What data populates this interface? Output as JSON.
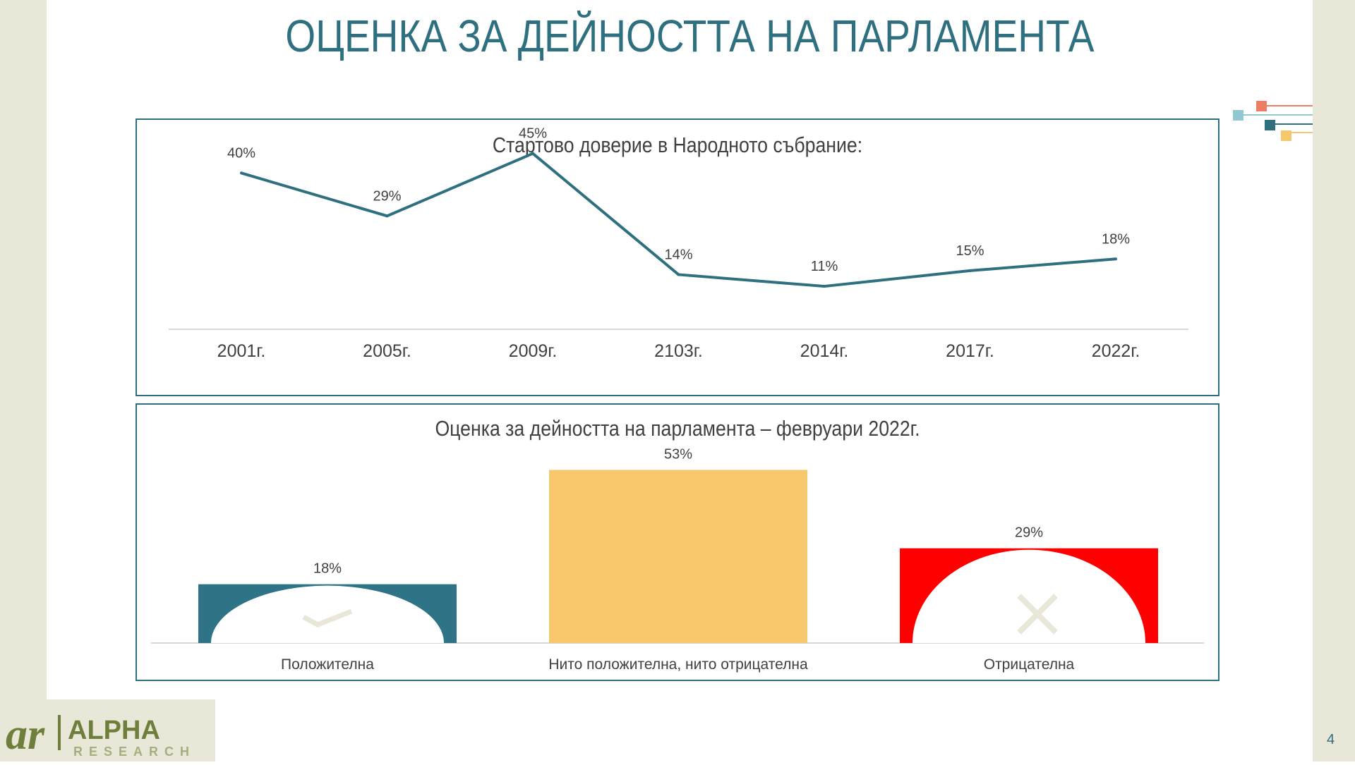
{
  "title": "ОЦЕНКА ЗА ДЕЙНОСТТА НА ПАРЛАМЕНТА",
  "page_number": "4",
  "logo": {
    "brand": "ALPHA",
    "sub": "RESEARCH",
    "mark": "ar"
  },
  "colors": {
    "title": "#2f7080",
    "line": "#2f7080",
    "positive": "#2e7386",
    "neutral": "#f6c76d",
    "negative": "#ff0000",
    "icon": "#e9e7d7"
  },
  "icons": {
    "positive": "checkmark-icon",
    "negative": "cross-icon"
  },
  "chart_data": [
    {
      "type": "line",
      "title": "Стартово доверие в Народното събрание:",
      "categories": [
        "2001г.",
        "2005г.",
        "2009г.",
        "2103г.",
        "2014г.",
        "2017г.",
        "2022г."
      ],
      "values": [
        40,
        29,
        45,
        14,
        11,
        15,
        18
      ],
      "data_labels": [
        "40%",
        "29%",
        "45%",
        "14%",
        "11%",
        "15%",
        "18%"
      ],
      "ylim": [
        0,
        50
      ],
      "grid": false,
      "legend": "none"
    },
    {
      "type": "bar",
      "title": "Оценка за дейността на парламента – февруари 2022г.",
      "categories": [
        "Положителна",
        "Нито положителна, нито отрицателна",
        "Отрицателна"
      ],
      "values": [
        18,
        53,
        29
      ],
      "data_labels": [
        "18%",
        "53%",
        "29%"
      ],
      "ylim": [
        0,
        60
      ],
      "grid": false,
      "legend": "none"
    }
  ]
}
